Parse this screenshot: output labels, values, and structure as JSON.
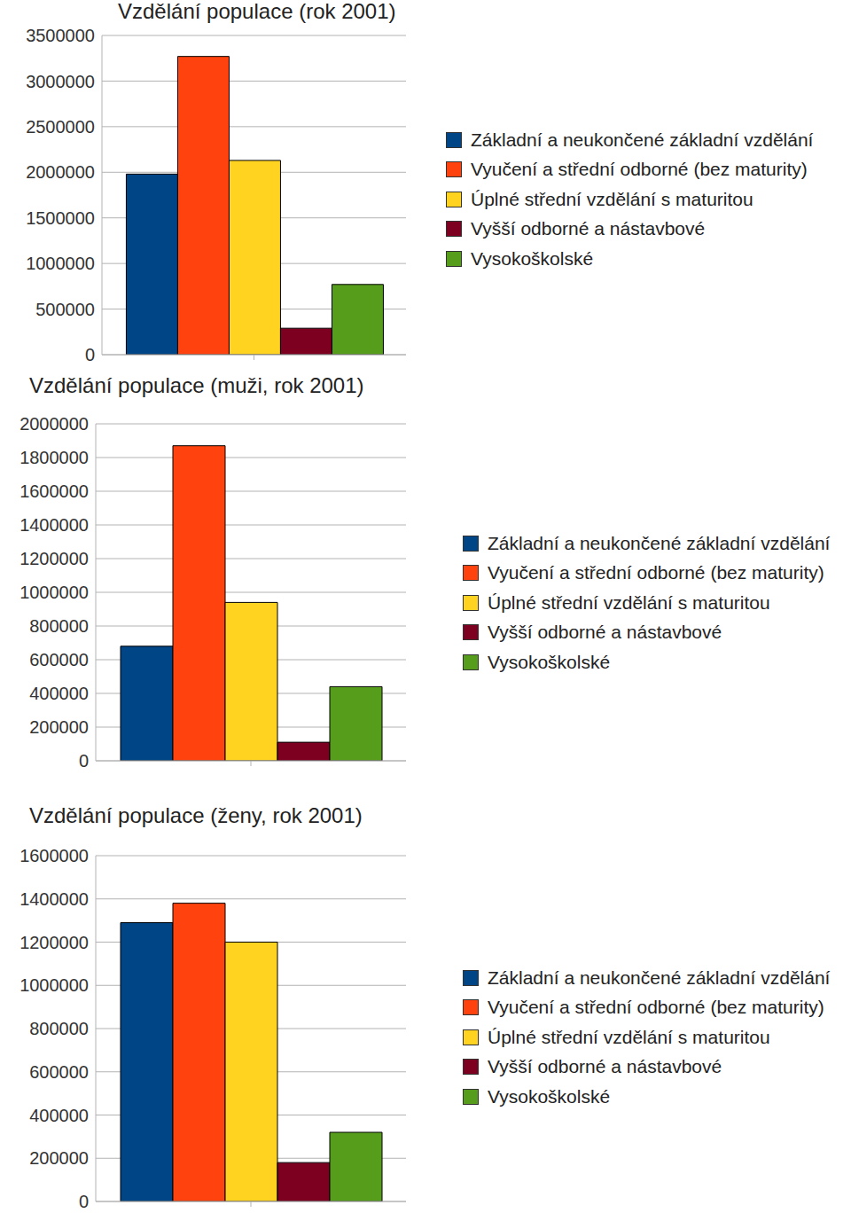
{
  "chart_data": [
    {
      "type": "bar",
      "title": "Vzdělání populace (rok 2001)",
      "categories": [
        null
      ],
      "series": [
        {
          "name": "Základní a neukončené základní vzdělání",
          "color": "#004586",
          "values": [
            1980000
          ]
        },
        {
          "name": "Vyučení a střední odborné (bez maturity)",
          "color": "#ff420e",
          "values": [
            3270000
          ]
        },
        {
          "name": "Úplné střední vzdělání s maturitou",
          "color": "#ffd320",
          "values": [
            2130000
          ]
        },
        {
          "name": "Vyšší odborné a nástavbové",
          "color": "#7e0021",
          "values": [
            290000
          ]
        },
        {
          "name": "Vysokoškolské",
          "color": "#579d1c",
          "values": [
            770000
          ]
        }
      ],
      "ylim": [
        0,
        3500000
      ],
      "yticks": [
        0,
        500000,
        1000000,
        1500000,
        2000000,
        2500000,
        3000000,
        3500000
      ],
      "grid": true,
      "legend": "right"
    },
    {
      "type": "bar",
      "title": "Vzdělání populace (muži, rok 2001)",
      "categories": [
        null
      ],
      "series": [
        {
          "name": "Základní a neukončené základní vzdělání",
          "color": "#004586",
          "values": [
            680000
          ]
        },
        {
          "name": "Vyučení a střední odborné (bez maturity)",
          "color": "#ff420e",
          "values": [
            1870000
          ]
        },
        {
          "name": "Úplné střední vzdělání s maturitou",
          "color": "#ffd320",
          "values": [
            940000
          ]
        },
        {
          "name": "Vyšší odborné a nástavbové",
          "color": "#7e0021",
          "values": [
            110000
          ]
        },
        {
          "name": "Vysokoškolské",
          "color": "#579d1c",
          "values": [
            440000
          ]
        }
      ],
      "ylim": [
        0,
        2000000
      ],
      "yticks": [
        0,
        200000,
        400000,
        600000,
        800000,
        1000000,
        1200000,
        1400000,
        1600000,
        1800000,
        2000000
      ],
      "grid": true,
      "legend": "right"
    },
    {
      "type": "bar",
      "title": "Vzdělání populace (ženy, rok 2001)",
      "categories": [
        null
      ],
      "series": [
        {
          "name": "Základní a neukončené základní vzdělání",
          "color": "#004586",
          "values": [
            1290000
          ]
        },
        {
          "name": "Vyučení a střední odborné (bez maturity)",
          "color": "#ff420e",
          "values": [
            1380000
          ]
        },
        {
          "name": "Úplné střední vzdělání s maturitou",
          "color": "#ffd320",
          "values": [
            1200000
          ]
        },
        {
          "name": "Vyšší odborné a nástavbové",
          "color": "#7e0021",
          "values": [
            180000
          ]
        },
        {
          "name": "Vysokoškolské",
          "color": "#579d1c",
          "values": [
            320000
          ]
        }
      ],
      "ylim": [
        0,
        1600000
      ],
      "yticks": [
        0,
        200000,
        400000,
        600000,
        800000,
        1000000,
        1200000,
        1400000,
        1600000
      ],
      "grid": true,
      "legend": "right"
    }
  ]
}
